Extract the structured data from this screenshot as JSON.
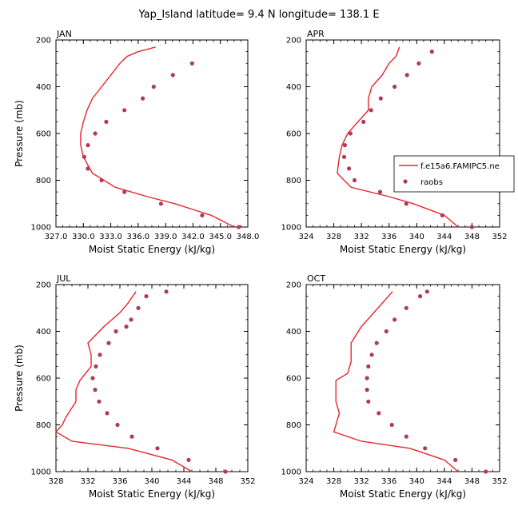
{
  "title": "Yap_Island  latitude= 9.4 N longitude= 138.1 E",
  "colors": {
    "model_line": "#e8262b",
    "obs_marker": "#b03a5b",
    "axis": "#000000"
  },
  "legend": {
    "placement": "right of APR panel",
    "model_label": "f.e15a6.FAMIPC5.ne",
    "obs_label": "raobs"
  },
  "chart_data": [
    {
      "type": "line",
      "panel_label": "JAN",
      "xlabel": "Moist Static Energy (kJ/kg)",
      "ylabel": "Pressure (mb)",
      "xlim": [
        327.0,
        348.0
      ],
      "ylim": [
        200,
        1000
      ],
      "y_inverted": true,
      "x_ticks": [
        327.0,
        330.0,
        333.0,
        336.0,
        339.0,
        342.0,
        345.0,
        348.0
      ],
      "x_tick_labels": [
        "327.0",
        "330.0",
        "333.0",
        "336.0",
        "339.0",
        "342.0",
        "345.0",
        "348.0"
      ],
      "y_ticks": [
        200,
        400,
        600,
        800,
        1000
      ],
      "y_tick_labels": [
        "200",
        "400",
        "600",
        "800",
        "1000"
      ],
      "series": [
        {
          "name": "f.e15a6.FAMIPC5.ne",
          "style": "line",
          "x": [
            346.5,
            344.0,
            340.0,
            337.0,
            333.5,
            331.0,
            330.0,
            329.7,
            329.7,
            330.0,
            330.4,
            331.0,
            332.0,
            333.0,
            334.0,
            334.8,
            336.0,
            337.0,
            337.9
          ],
          "y": [
            1000,
            950,
            900,
            870,
            830,
            770,
            700,
            650,
            600,
            550,
            500,
            450,
            400,
            350,
            300,
            270,
            250,
            240,
            230
          ]
        },
        {
          "name": "raobs",
          "style": "markers",
          "x": [
            347.0,
            343.0,
            338.5,
            334.5,
            332.0,
            330.5,
            330.1,
            330.5,
            331.3,
            332.5,
            334.5,
            336.5,
            337.7,
            339.8,
            341.9
          ],
          "y": [
            1000,
            950,
            900,
            850,
            800,
            750,
            700,
            650,
            600,
            550,
            500,
            450,
            400,
            350,
            300
          ]
        }
      ]
    },
    {
      "type": "line",
      "panel_label": "APR",
      "xlabel": "Moist Static Energy (kJ/kg)",
      "ylabel": "",
      "xlim": [
        324,
        352
      ],
      "ylim": [
        200,
        1000
      ],
      "y_inverted": true,
      "x_ticks": [
        324,
        328,
        332,
        336,
        340,
        344,
        348,
        352
      ],
      "x_tick_labels": [
        "324",
        "328",
        "332",
        "336",
        "340",
        "344",
        "348",
        "352"
      ],
      "y_ticks": [
        200,
        400,
        600,
        800,
        1000
      ],
      "y_tick_labels": [
        "200",
        "400",
        "600",
        "800",
        "1000"
      ],
      "series": [
        {
          "name": "f.e15a6.FAMIPC5.ne",
          "style": "line",
          "x": [
            346.0,
            344.0,
            339.5,
            336.0,
            330.5,
            328.5,
            328.8,
            329.2,
            330.0,
            331.5,
            333.0,
            333.0,
            333.5,
            335.0,
            336.0,
            337.0,
            337.5
          ],
          "y": [
            1000,
            950,
            900,
            870,
            830,
            770,
            700,
            650,
            600,
            550,
            500,
            450,
            400,
            350,
            300,
            270,
            230
          ]
        },
        {
          "name": "raobs",
          "style": "markers",
          "x": [
            348.0,
            343.7,
            338.5,
            334.7,
            331.0,
            330.2,
            329.5,
            329.6,
            330.4,
            332.3,
            333.4,
            334.8,
            336.8,
            338.6,
            340.3,
            342.2
          ],
          "y": [
            1000,
            950,
            900,
            850,
            800,
            750,
            700,
            650,
            600,
            550,
            500,
            450,
            400,
            350,
            300,
            250
          ]
        }
      ]
    },
    {
      "type": "line",
      "panel_label": "JUL",
      "xlabel": "Moist Static Energy (kJ/kg)",
      "ylabel": "Pressure (mb)",
      "xlim": [
        328,
        352
      ],
      "ylim": [
        200,
        1000
      ],
      "y_inverted": true,
      "x_ticks": [
        328,
        332,
        336,
        340,
        344,
        348,
        352
      ],
      "x_tick_labels": [
        "328",
        "332",
        "336",
        "340",
        "344",
        "348",
        "352"
      ],
      "y_ticks": [
        200,
        400,
        600,
        800,
        1000
      ],
      "y_tick_labels": [
        "200",
        "400",
        "600",
        "800",
        "1000"
      ],
      "series": [
        {
          "name": "f.e15a6.FAMIPC5.ne",
          "style": "line",
          "x": [
            345.0,
            342.5,
            337.0,
            330.0,
            328.0,
            328.8,
            329.2,
            330.5,
            330.5,
            331.0,
            332.4,
            332.4,
            332.0,
            334.0,
            336.0,
            337.0,
            338.0
          ],
          "y": [
            1000,
            950,
            900,
            870,
            830,
            800,
            770,
            700,
            650,
            610,
            550,
            500,
            450,
            380,
            320,
            280,
            230
          ]
        },
        {
          "name": "raobs",
          "style": "markers",
          "x": [
            349.2,
            344.6,
            340.7,
            337.5,
            335.7,
            334.4,
            333.4,
            332.9,
            332.6,
            333.0,
            333.5,
            334.6,
            335.5,
            336.8,
            337.4,
            338.3,
            339.3,
            341.8
          ],
          "y": [
            1000,
            950,
            900,
            850,
            800,
            750,
            700,
            650,
            600,
            550,
            500,
            450,
            400,
            380,
            350,
            300,
            250,
            230
          ]
        }
      ]
    },
    {
      "type": "line",
      "panel_label": "OCT",
      "xlabel": "Moist Static Energy (kJ/kg)",
      "ylabel": "",
      "xlim": [
        324,
        352
      ],
      "ylim": [
        200,
        1000
      ],
      "y_inverted": true,
      "x_ticks": [
        324,
        328,
        332,
        336,
        340,
        344,
        348,
        352
      ],
      "x_tick_labels": [
        "324",
        "328",
        "332",
        "336",
        "340",
        "344",
        "348",
        "352"
      ],
      "y_ticks": [
        200,
        400,
        600,
        800,
        1000
      ],
      "y_tick_labels": [
        "200",
        "400",
        "600",
        "800",
        "1000"
      ],
      "series": [
        {
          "name": "f.e15a6.FAMIPC5.ne",
          "style": "line",
          "x": [
            346.0,
            344.0,
            339.0,
            332.0,
            328.0,
            328.3,
            328.8,
            328.3,
            328.3,
            328.3,
            330.0,
            330.5,
            330.5,
            332.0,
            333.5,
            335.0,
            336.5
          ],
          "y": [
            1000,
            950,
            900,
            870,
            830,
            800,
            750,
            700,
            650,
            610,
            580,
            530,
            450,
            380,
            330,
            280,
            230
          ]
        },
        {
          "name": "raobs",
          "style": "markers",
          "x": [
            350.0,
            345.6,
            341.2,
            338.5,
            336.4,
            334.5,
            333.0,
            332.8,
            332.8,
            333.0,
            333.5,
            334.2,
            335.6,
            336.8,
            338.5,
            340.5,
            341.5
          ],
          "y": [
            1000,
            950,
            900,
            850,
            800,
            750,
            700,
            650,
            600,
            550,
            500,
            450,
            400,
            350,
            300,
            250,
            230
          ]
        }
      ]
    }
  ]
}
